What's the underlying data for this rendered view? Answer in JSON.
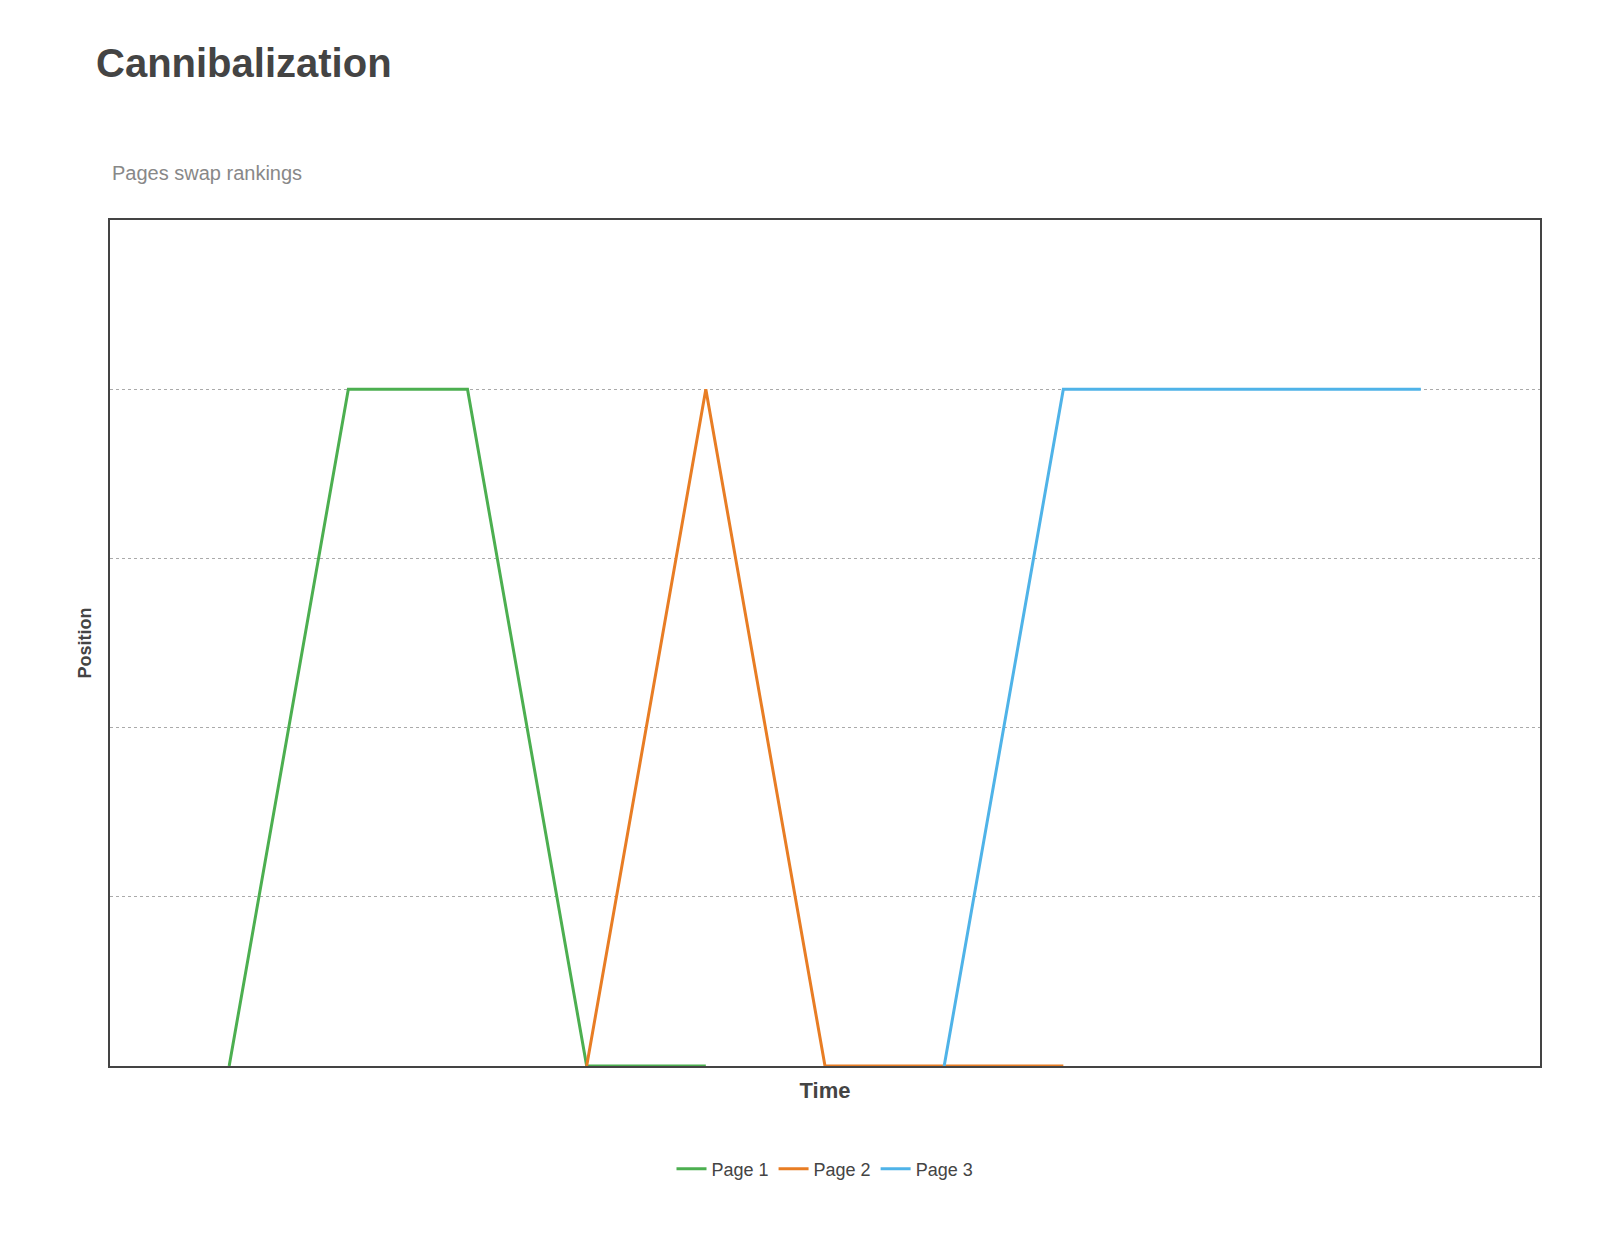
{
  "chart_data": {
    "type": "line",
    "title": "Cannibalization",
    "subtitle": "Pages swap rankings",
    "xlabel": "Time",
    "ylabel": "Position",
    "series": [
      {
        "name": "Page 1",
        "color": "#4caf50",
        "x": [
          1,
          2,
          3,
          4,
          5
        ],
        "values": [
          0,
          8,
          8,
          0,
          0
        ]
      },
      {
        "name": "Page 2",
        "color": "#e87d24",
        "x": [
          4,
          5,
          6,
          7,
          8
        ],
        "values": [
          0,
          8,
          0,
          0,
          0
        ]
      },
      {
        "name": "Page 3",
        "color": "#4fb3e8",
        "x": [
          7,
          8,
          9,
          10,
          11
        ],
        "values": [
          0,
          8,
          8,
          8,
          8
        ]
      }
    ],
    "xlim": [
      0,
      12
    ],
    "ylim": [
      0,
      10
    ],
    "xticks": [],
    "yticks": [
      2,
      4,
      6,
      8
    ],
    "grid": true,
    "legend": "bottom",
    "tick_labels": false
  }
}
